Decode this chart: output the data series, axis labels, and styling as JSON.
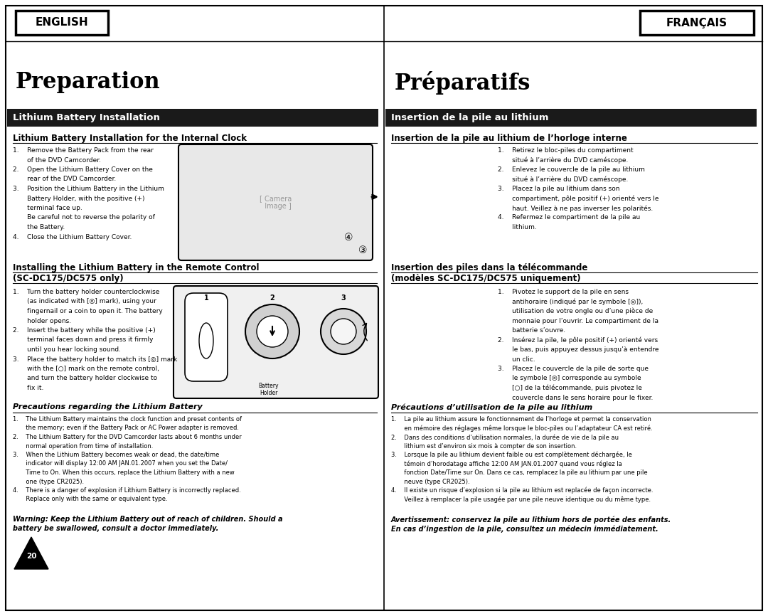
{
  "page_width": 10.8,
  "page_height": 8.66,
  "background_color": "#ffffff",
  "english_label": "ENGLISH",
  "french_label": "FRANÇAIS",
  "title_en": "Preparation",
  "title_fr": "Préparatifs",
  "section_header_en": "Lithium Battery Installation",
  "section_header_fr": "Insertion de la pile au lithium",
  "subsection1_en": "Lithium Battery Installation for the Internal Clock",
  "subsection1_fr": "Insertion de la pile au lithium de l’horloge interne",
  "body1_en": [
    "1.    Remove the Battery Pack from the rear",
    "       of the DVD Camcorder.",
    "2.    Open the Lithium Battery Cover on the",
    "       rear of the DVD Camcorder.",
    "3.    Position the Lithium Battery in the Lithium",
    "       Battery Holder, with the positive (+)",
    "       terminal face up.",
    "       Be careful not to reverse the polarity of",
    "       the Battery.",
    "4.    Close the Lithium Battery Cover."
  ],
  "body1_fr": [
    "1.    Retirez le bloc-piles du compartiment",
    "       situé à l’arrière du DVD caméscope.",
    "2.    Enlevez le couvercle de la pile au lithium",
    "       situé à l’arrière du DVD caméscope.",
    "3.    Placez la pile au lithium dans son",
    "       compartiment, pôle positif (+) orienté vers le",
    "       haut. Veillez à ne pas inverser les polarités.",
    "4.    Refermez le compartiment de la pile au",
    "       lithium."
  ],
  "subsection2_en_line1": "Installing the Lithium Battery in the Remote Control",
  "subsection2_en_line2": "(SC-DC175/DC575 only)",
  "subsection2_fr_line1": "Insertion des piles dans la télécommande",
  "subsection2_fr_line2": "(modèles SC-DC175/DC575 uniquement)",
  "body2_en": [
    "1.    Turn the battery holder counterclockwise",
    "       (as indicated with [◎] mark), using your",
    "       fingernail or a coin to open it. The battery",
    "       holder opens.",
    "2.    Insert the battery while the positive (+)",
    "       terminal faces down and press it firmly",
    "       until you hear locking sound.",
    "3.    Place the battery holder to match its [◎] mark",
    "       with the [○] mark on the remote control,",
    "       and turn the battery holder clockwise to",
    "       fix it."
  ],
  "body2_fr": [
    "1.    Pivotez le support de la pile en sens",
    "       antihoraire (indiqué par le symbole [◎]),",
    "       utilisation de votre ongle ou d’une pièce de",
    "       monnaie pour l’ouvrir. Le compartiment de la",
    "       batterie s’ouvre.",
    "2.    Insérez la pile, le pôle positif (+) orienté vers",
    "       le bas, puis appuyez dessus jusqu’à entendre",
    "       un clic.",
    "3.    Placez le couvercle de la pile de sorte que",
    "       le symbole [◎] corresponde au symbole",
    "       [○] de la télécommande, puis pivotez le",
    "       couvercle dans le sens horaire pour le fixer."
  ],
  "subsection3_en": "Precautions regarding the Lithium Battery",
  "subsection3_fr": "Précautions d’utilisation de la pile au lithium",
  "body3_en": [
    "1.    The Lithium Battery maintains the clock function and preset contents of",
    "       the memory; even if the Battery Pack or AC Power adapter is removed.",
    "2.    The Lithium Battery for the DVD Camcorder lasts about 6 months under",
    "       normal operation from time of installation.",
    "3.    When the Lithium Battery becomes weak or dead, the date/time",
    "       indicator will display 12:00 AM JAN.01.2007 when you set the Date/",
    "       Time to On. When this occurs, replace the Lithium Battery with a new",
    "       one (type CR2025).",
    "4.    There is a danger of explosion if Lithium Battery is incorrectly replaced.",
    "       Replace only with the same or equivalent type."
  ],
  "body3_fr": [
    "1.    La pile au lithium assure le fonctionnement de l’horloge et permet la conservation",
    "       en mémoire des réglages même lorsque le bloc-piles ou l’adaptateur CA est retiré.",
    "2.    Dans des conditions d’utilisation normales, la durée de vie de la pile au",
    "       lithium est d’environ six mois à compter de son insertion.",
    "3.    Lorsque la pile au lithium devient faible ou est complètement déchargée, le",
    "       témoin d’horodatage affiche 12:00 AM JAN.01.2007 quand vous réglez la",
    "       fonction Date/Time sur On. Dans ce cas, remplacez la pile au lithium par une pile",
    "       neuve (type CR2025).",
    "4.    Il existe un risque d’explosion si la pile au lithium est replacée de façon incorrecte.",
    "       Veillez à remplacer la pile usagée par une pile neuve identique ou du même type."
  ],
  "warning_en": "Warning: Keep the Lithium Battery out of reach of children. Should a\nbattery be swallowed, consult a doctor immediately.",
  "warning_fr": "Avertissement: conservez la pile au lithium hors de portée des enfants.\nEn cas d’ingestion de la pile, consultez un médecin immédiatement.",
  "page_number": "20"
}
